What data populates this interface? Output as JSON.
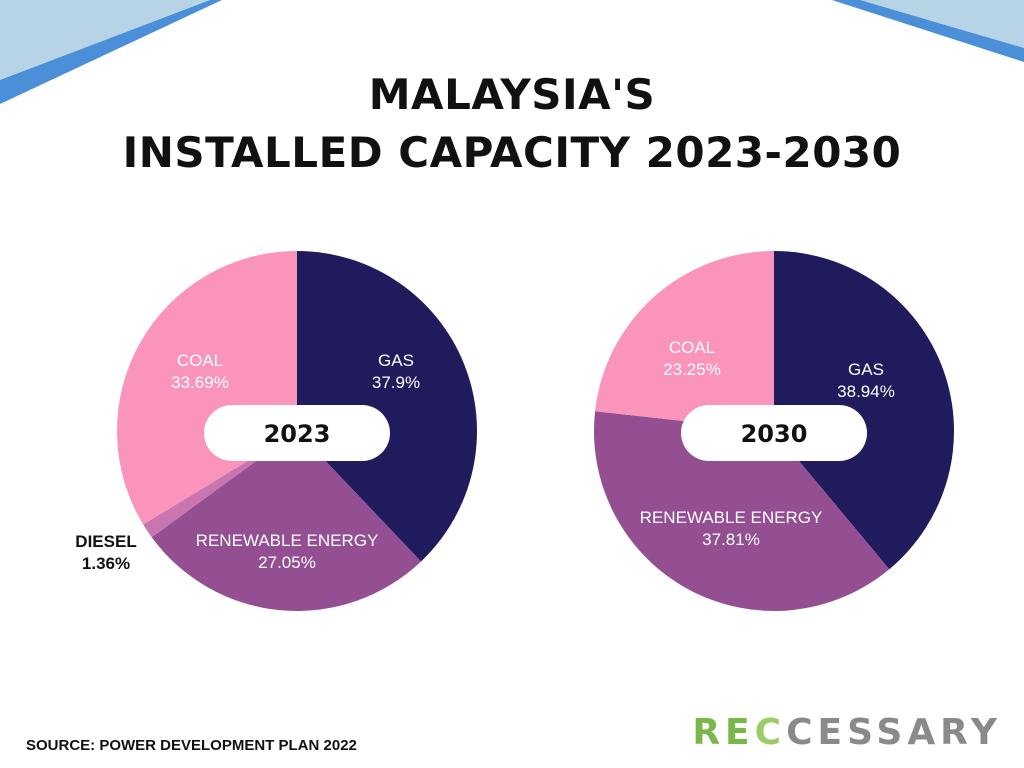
{
  "title_lines": [
    "MALAYSIA'S",
    "INSTALLED CAPACITY 2023-2030"
  ],
  "source": "SOURCE: POWER DEVELOPMENT PLAN 2022",
  "logo": {
    "part1": "RE",
    "part2": "C",
    "part3": "CESSARY"
  },
  "colors": {
    "gas": "#201b5c",
    "renewable": "#944f92",
    "diesel": "#c975b0",
    "coal": "#fb94bb",
    "decor_light": "#b7d3e6",
    "decor_dark": "#4a8fd8"
  },
  "chart_data": [
    {
      "type": "pie",
      "center_label": "2023",
      "slices": [
        {
          "label": "GAS",
          "value": 37.9,
          "value_text": "37.9%",
          "color": "#201b5c"
        },
        {
          "label": "RENEWABLE ENERGY",
          "value": 27.05,
          "value_text": "27.05%",
          "color": "#944f92"
        },
        {
          "label": "DIESEL",
          "value": 1.36,
          "value_text": "1.36%",
          "color": "#c975b0"
        },
        {
          "label": "COAL",
          "value": 33.69,
          "value_text": "33.69%",
          "color": "#fb94bb"
        }
      ]
    },
    {
      "type": "pie",
      "center_label": "2030",
      "slices": [
        {
          "label": "GAS",
          "value": 38.94,
          "value_text": "38.94%",
          "color": "#201b5c"
        },
        {
          "label": "RENEWABLE ENERGY",
          "value": 37.81,
          "value_text": "37.81%",
          "color": "#944f92"
        },
        {
          "label": "COAL",
          "value": 23.25,
          "value_text": "23.25%",
          "color": "#fb94bb"
        }
      ]
    }
  ]
}
